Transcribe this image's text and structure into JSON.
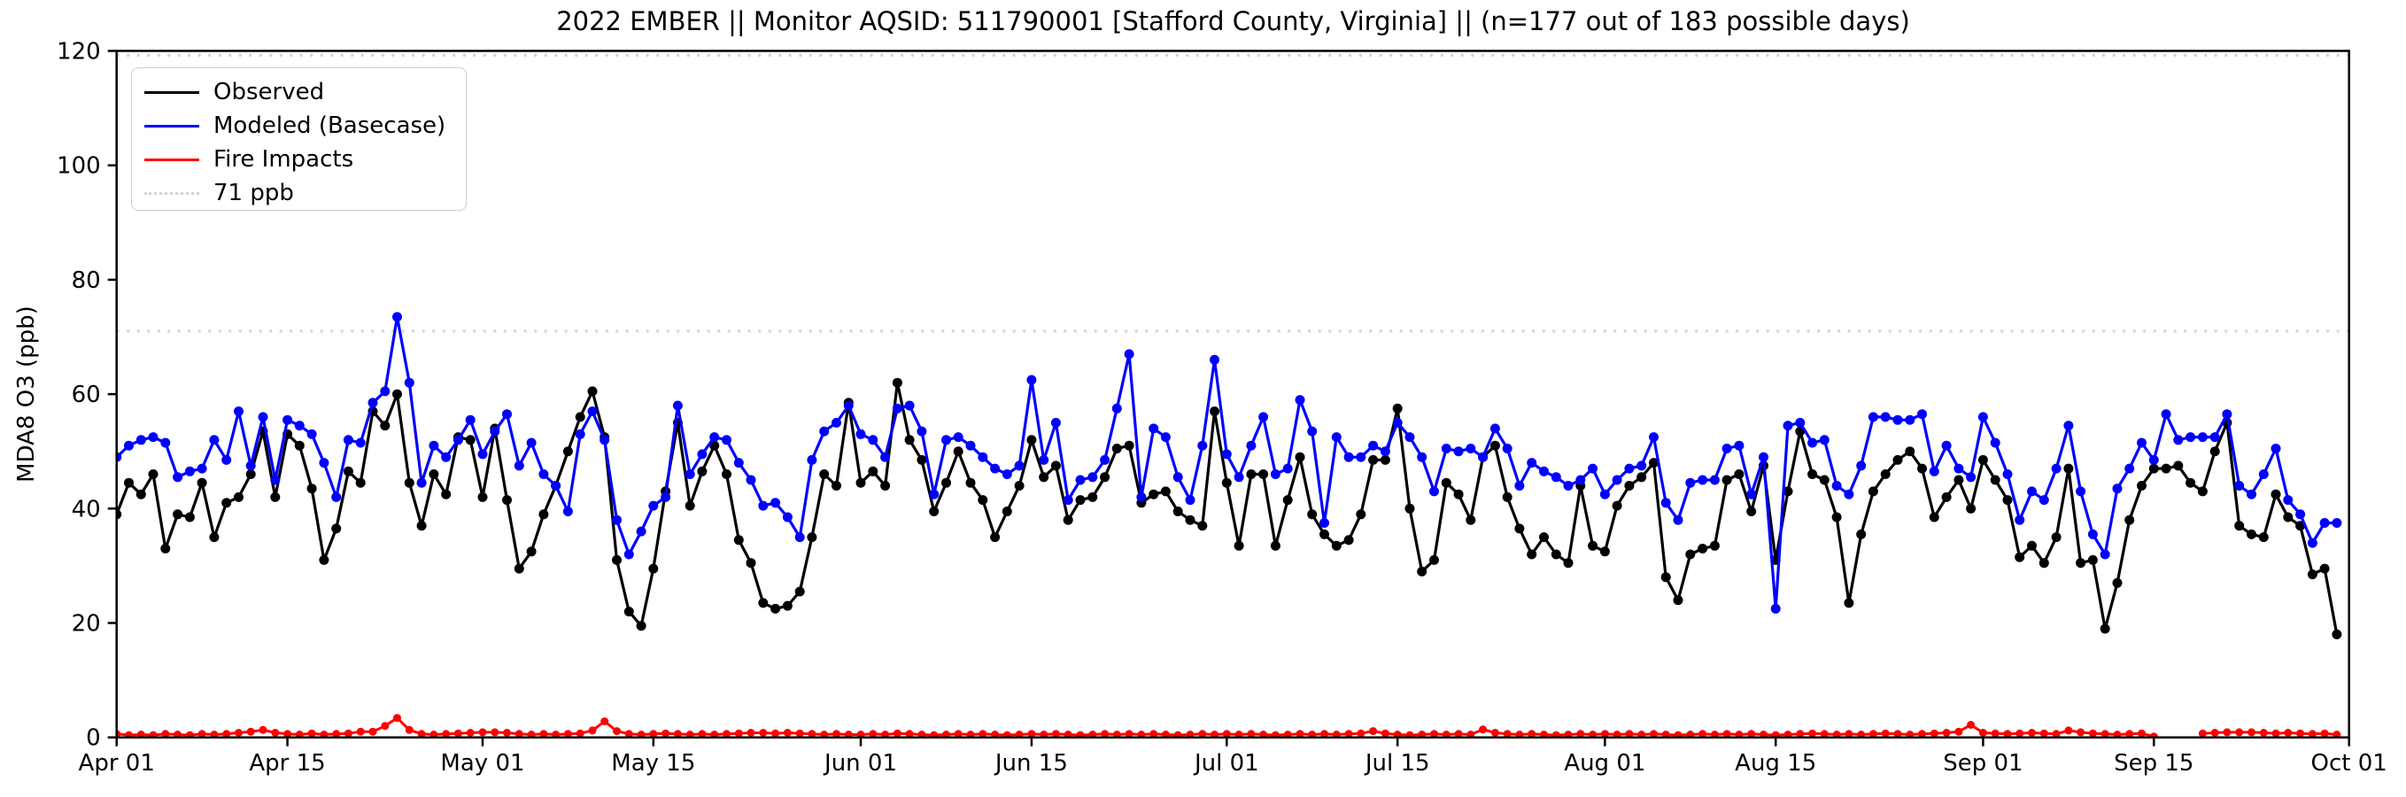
{
  "title": "2022 EMBER || Monitor AQSID: 511790001 [Stafford County, Virginia] || (n=177 out of 183 possible days)",
  "ylabel": "MDA8 O3 (ppb)",
  "colors": {
    "observed": "#000000",
    "modeled": "#0000ff",
    "fire": "#ff0000",
    "threshold": "#d3d3d3",
    "axis": "#000000",
    "legend_border": "#cccccc"
  },
  "legend": {
    "items": [
      {
        "label": "Observed",
        "color": "#000000",
        "style": "solid"
      },
      {
        "label": "Modeled (Basecase)",
        "color": "#0000ff",
        "style": "solid"
      },
      {
        "label": "Fire Impacts",
        "color": "#ff0000",
        "style": "solid"
      },
      {
        "label": "71 ppb",
        "color": "#d3d3d3",
        "style": "dotted"
      }
    ]
  },
  "chart_data": {
    "type": "line",
    "title": "2022 EMBER || Monitor AQSID: 511790001 [Stafford County, Virginia] || (n=177 out of 183 possible days)",
    "xlabel": "",
    "ylabel": "MDA8 O3 (ppb)",
    "ylim": [
      0,
      120
    ],
    "x_is_day_index_from": "Apr 01",
    "n_days": 183,
    "grid": false,
    "legend_position": "upper left",
    "threshold_line": {
      "value": 71,
      "label": "71 ppb",
      "style": "dotted",
      "color": "#d3d3d3"
    },
    "top_dotted_line_value": 120,
    "xticks": [
      {
        "day": 0,
        "label": "Apr 01"
      },
      {
        "day": 14,
        "label": "Apr 15"
      },
      {
        "day": 30,
        "label": "May 01"
      },
      {
        "day": 44,
        "label": "May 15"
      },
      {
        "day": 61,
        "label": "Jun 01"
      },
      {
        "day": 75,
        "label": "Jun 15"
      },
      {
        "day": 91,
        "label": "Jul 01"
      },
      {
        "day": 105,
        "label": "Jul 15"
      },
      {
        "day": 122,
        "label": "Aug 01"
      },
      {
        "day": 136,
        "label": "Aug 15"
      },
      {
        "day": 153,
        "label": "Sep 01"
      },
      {
        "day": 167,
        "label": "Sep 15"
      },
      {
        "day": 183,
        "label": "Oct 01"
      }
    ],
    "yticks": [
      0,
      20,
      40,
      60,
      80,
      100,
      120
    ],
    "series": [
      {
        "name": "Observed",
        "color": "#000000",
        "marker_r": 5.5,
        "line_w": 3.2,
        "values": [
          39,
          44.5,
          42.5,
          46,
          33,
          39,
          38.5,
          44.5,
          35,
          41,
          42,
          46,
          53.5,
          42,
          53,
          51,
          43.5,
          31,
          36.5,
          46.5,
          44.5,
          57,
          54.5,
          60,
          44.5,
          37,
          46,
          42.5,
          52.5,
          52,
          42,
          54,
          41.5,
          29.5,
          32.5,
          39,
          44,
          50,
          56,
          60.5,
          52.5,
          31,
          22,
          19.5,
          29.5,
          43,
          55,
          40.5,
          46.5,
          51,
          46,
          34.5,
          30.5,
          23.5,
          22.5,
          23,
          25.5,
          35,
          46,
          44,
          58.5,
          44.5,
          46.5,
          44,
          62,
          52,
          48.5,
          39.5,
          44.5,
          50,
          44.5,
          41.5,
          35,
          39.5,
          44,
          52,
          45.5,
          47.5,
          38,
          41.5,
          42,
          45.5,
          50.5,
          51,
          41,
          42.5,
          43,
          39.5,
          38,
          37,
          57,
          44.5,
          33.5,
          46,
          46,
          33.5,
          41.5,
          49,
          39,
          35.5,
          33.5,
          34.5,
          39,
          48.5,
          48.5,
          57.5,
          40,
          29,
          31,
          44.5,
          42.5,
          38,
          49,
          51,
          42,
          36.5,
          32,
          35,
          32,
          30.5,
          44,
          33.5,
          32.5,
          40.5,
          44,
          45.5,
          48,
          28,
          24,
          32,
          33,
          33.5,
          45,
          46,
          39.5,
          47.5,
          31,
          43,
          53.5,
          46,
          45,
          38.5,
          23.5,
          35.5,
          43,
          46,
          48.5,
          50,
          47,
          38.5,
          42,
          45,
          40,
          48.5,
          45,
          41.5,
          31.5,
          33.5,
          30.5,
          35,
          47,
          30.5,
          31,
          19,
          27,
          38,
          44,
          47,
          47,
          47.5,
          44.5,
          43,
          50,
          55,
          37,
          35.5,
          35,
          42.5,
          38.5,
          37,
          28.5,
          29.5,
          18
        ]
      },
      {
        "name": "Modeled (Basecase)",
        "color": "#0000ff",
        "marker_r": 5.5,
        "line_w": 3.2,
        "values": [
          49,
          51,
          52,
          52.5,
          51.5,
          45.5,
          46.5,
          47,
          52,
          48.5,
          57,
          47.5,
          56,
          45,
          55.5,
          54.5,
          53,
          48,
          42,
          52,
          51.5,
          58.5,
          60.5,
          73.5,
          62,
          44.5,
          51,
          49,
          52,
          55.5,
          49.5,
          53.5,
          56.5,
          47.5,
          51.5,
          46,
          44,
          39.5,
          53,
          57,
          52,
          38,
          32,
          36,
          40.5,
          42,
          58,
          46,
          49.5,
          52.5,
          52,
          48,
          45,
          40.5,
          41,
          38.5,
          35,
          48.5,
          53.5,
          55,
          58,
          53,
          52,
          49,
          57.5,
          58,
          53.5,
          42.5,
          52,
          52.5,
          51,
          49,
          47,
          46,
          47.5,
          62.5,
          48.5,
          55,
          41.5,
          45,
          45.5,
          48.5,
          57.5,
          67,
          42,
          54,
          52.5,
          45.5,
          41.5,
          51,
          66,
          49.5,
          45.5,
          51,
          56,
          46,
          47,
          59,
          53.5,
          37.5,
          52.5,
          49,
          49,
          51,
          50,
          55,
          52.5,
          49,
          43,
          50.5,
          50,
          50.5,
          49,
          54,
          50.5,
          44,
          48,
          46.5,
          45.5,
          44,
          45,
          47,
          42.5,
          45,
          47,
          47.5,
          52.5,
          41,
          38,
          44.5,
          45,
          45,
          50.5,
          51,
          42.5,
          49,
          22.5,
          54.5,
          55,
          51.5,
          52,
          44,
          42.5,
          47.5,
          56,
          56,
          55.5,
          55.5,
          56.5,
          46.5,
          51,
          47,
          45.5,
          56,
          51.5,
          46,
          38,
          43,
          41.5,
          47,
          54.5,
          43,
          35.5,
          32,
          43.5,
          47,
          51.5,
          48.5,
          56.5,
          52,
          52.5,
          52.5,
          52.5,
          56.5,
          44,
          42.5,
          46,
          50.5,
          41.5,
          39,
          34,
          37.5,
          37.5
        ]
      },
      {
        "name": "Fire Impacts",
        "color": "#ff0000",
        "marker_r": 4.5,
        "line_w": 3,
        "values": [
          0.6,
          0.4,
          0.5,
          0.4,
          0.6,
          0.5,
          0.4,
          0.6,
          0.5,
          0.6,
          0.8,
          1.0,
          1.3,
          0.8,
          0.6,
          0.5,
          0.7,
          0.5,
          0.6,
          0.7,
          1.0,
          1.0,
          2.0,
          3.4,
          1.3,
          0.6,
          0.5,
          0.6,
          0.7,
          0.8,
          0.9,
          0.9,
          0.8,
          0.6,
          0.5,
          0.6,
          0.5,
          0.6,
          0.7,
          1.2,
          2.8,
          1.1,
          0.6,
          0.5,
          0.6,
          0.7,
          0.6,
          0.5,
          0.6,
          0.5,
          0.6,
          0.7,
          0.8,
          0.8,
          0.7,
          0.8,
          0.7,
          0.6,
          0.5,
          0.6,
          0.5,
          0.5,
          0.6,
          0.5,
          0.7,
          0.6,
          0.5,
          0.4,
          0.5,
          0.6,
          0.5,
          0.6,
          0.5,
          0.4,
          0.5,
          0.6,
          0.5,
          0.6,
          0.5,
          0.4,
          0.5,
          0.6,
          0.5,
          0.6,
          0.5,
          0.6,
          0.5,
          0.4,
          0.5,
          0.6,
          0.5,
          0.6,
          0.5,
          0.6,
          0.5,
          0.4,
          0.5,
          0.6,
          0.5,
          0.6,
          0.5,
          0.6,
          0.7,
          1.1,
          0.7,
          0.5,
          0.4,
          0.5,
          0.6,
          0.5,
          0.6,
          0.5,
          1.4,
          0.8,
          0.6,
          0.5,
          0.6,
          0.5,
          0.4,
          0.5,
          0.6,
          0.5,
          0.6,
          0.5,
          0.6,
          0.5,
          0.6,
          0.5,
          0.4,
          0.5,
          0.6,
          0.5,
          0.6,
          0.5,
          0.6,
          0.5,
          0.4,
          0.5,
          0.6,
          0.7,
          0.6,
          0.5,
          0.6,
          0.5,
          0.6,
          0.7,
          0.6,
          0.5,
          0.6,
          0.7,
          0.8,
          1.0,
          2.2,
          0.8,
          0.7,
          0.6,
          0.7,
          0.8,
          0.7,
          0.6,
          1.2,
          0.9,
          0.7,
          0.6,
          0.5,
          0.6,
          0.7,
          0.15,
          null,
          null,
          null,
          0.7,
          0.8,
          0.9,
          0.9,
          0.9,
          0.8,
          0.7,
          0.8,
          0.7,
          0.6,
          0.7,
          0.5
        ]
      }
    ]
  }
}
